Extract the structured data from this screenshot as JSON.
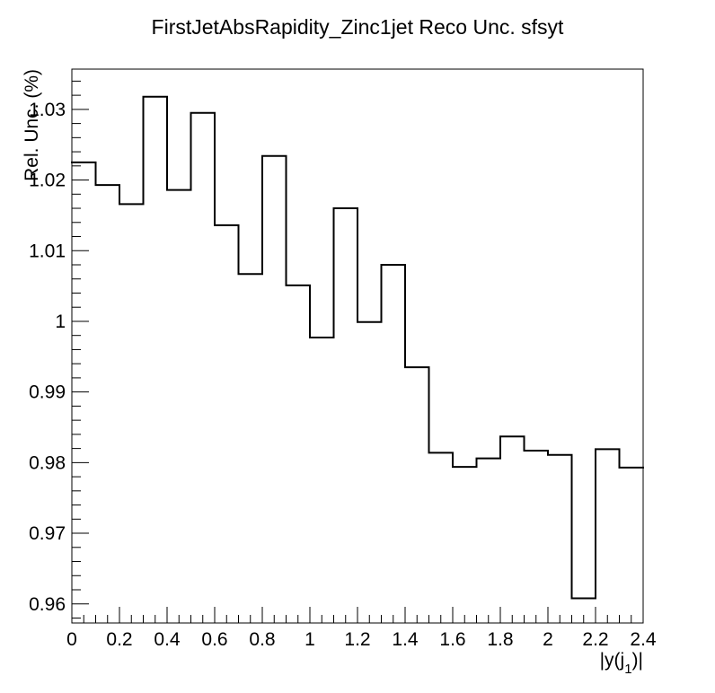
{
  "chart_data": {
    "type": "step-histogram",
    "title": "FirstJetAbsRapidity_Zinc1jet Reco Unc. sfsyt",
    "xlabel": "|y(j",
    "xlabel_sub": "1",
    "xlabel_end": ")|",
    "ylabel": "Rel. Unc. (%)",
    "xlim": [
      0,
      2.4
    ],
    "ylim": [
      0.9573,
      1.0357
    ],
    "xticks": [
      {
        "value": 0,
        "label": "0"
      },
      {
        "value": 0.2,
        "label": "0.2"
      },
      {
        "value": 0.4,
        "label": "0.4"
      },
      {
        "value": 0.6,
        "label": "0.6"
      },
      {
        "value": 0.8,
        "label": "0.8"
      },
      {
        "value": 1.0,
        "label": "1"
      },
      {
        "value": 1.2,
        "label": "1.2"
      },
      {
        "value": 1.4,
        "label": "1.4"
      },
      {
        "value": 1.6,
        "label": "1.6"
      },
      {
        "value": 1.8,
        "label": "1.8"
      },
      {
        "value": 2.0,
        "label": "2"
      },
      {
        "value": 2.2,
        "label": "2.2"
      },
      {
        "value": 2.4,
        "label": "2.4"
      }
    ],
    "yticks": [
      {
        "value": 0.96,
        "label": "0.96"
      },
      {
        "value": 0.97,
        "label": "0.97"
      },
      {
        "value": 0.98,
        "label": "0.98"
      },
      {
        "value": 0.99,
        "label": "0.99"
      },
      {
        "value": 1.0,
        "label": "1"
      },
      {
        "value": 1.01,
        "label": "1.01"
      },
      {
        "value": 1.02,
        "label": "1.02"
      },
      {
        "value": 1.03,
        "label": "1.03"
      }
    ],
    "bin_edges": [
      0,
      0.1,
      0.2,
      0.3,
      0.4,
      0.5,
      0.6,
      0.7,
      0.8,
      0.9,
      1.0,
      1.1,
      1.2,
      1.3,
      1.4,
      1.5,
      1.6,
      1.7,
      1.8,
      1.9,
      2.0,
      2.1,
      2.2,
      2.3,
      2.4
    ],
    "values": [
      1.0225,
      1.0193,
      1.0166,
      1.0318,
      1.0186,
      1.0295,
      1.0136,
      1.0067,
      1.0234,
      1.0051,
      0.9977,
      1.016,
      0.9999,
      1.008,
      0.9935,
      0.9814,
      0.9794,
      0.9806,
      0.9837,
      0.9817,
      0.9811,
      0.9608,
      0.9819,
      0.9793
    ],
    "line_color": "#000000"
  }
}
